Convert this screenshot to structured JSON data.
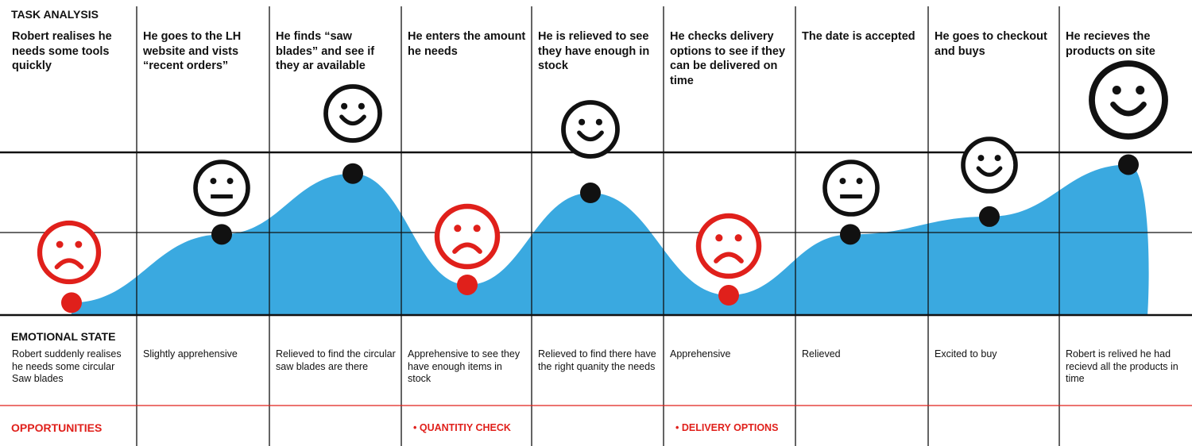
{
  "sections": {
    "task_analysis": "TASK ANALYSIS",
    "emotional_state": "EMOTIONAL STATE",
    "opportunities": "OPPORTUNITIES"
  },
  "stages": [
    {
      "task": "Robert realises he needs some tools quickly",
      "emotion": "Robert suddenly realises he needs some circular Saw blades",
      "face": "sad",
      "level": 0.03,
      "opportunity": ""
    },
    {
      "task": "He goes to the LH website and vists “recent orders”",
      "emotion": "Slightly apprehensive",
      "face": "neutral",
      "level": 0.49,
      "opportunity": ""
    },
    {
      "task": "He finds “saw blades” and see if they ar available",
      "emotion": "Relieved to find the circular saw blades are there",
      "face": "happy",
      "level": 0.9,
      "opportunity": ""
    },
    {
      "task": "He enters the amount he needs",
      "emotion": "Apprehensive to see they have enough items in stock",
      "face": "sad",
      "level": 0.15,
      "opportunity": "• QUANTITIY CHECK"
    },
    {
      "task": "He is relieved to see they have enough in stock",
      "emotion": "Relieved to find there have the right quanity the needs",
      "face": "happy",
      "level": 0.77,
      "opportunity": ""
    },
    {
      "task": "He checks delivery options to see if they can be delivered on time",
      "emotion": "Apprehensive",
      "face": "sad",
      "level": 0.08,
      "opportunity": "• DELIVERY OPTIONS"
    },
    {
      "task": "The date is accepted",
      "emotion": "Relieved",
      "face": "neutral",
      "level": 0.49,
      "opportunity": ""
    },
    {
      "task": "He goes to checkout and buys",
      "emotion": "Excited to buy",
      "face": "happy",
      "level": 0.61,
      "opportunity": ""
    },
    {
      "task": "He recieves the products on site",
      "emotion": "Robert is relived he had recievd all the products in time",
      "face": "happy",
      "level": 0.96,
      "opportunity": ""
    }
  ],
  "colors": {
    "curve_fill": "#3aa9e0",
    "negative": "#e0201b",
    "positive": "#111111",
    "grid": "#111111",
    "opportunity_line": "#e0201b"
  }
}
